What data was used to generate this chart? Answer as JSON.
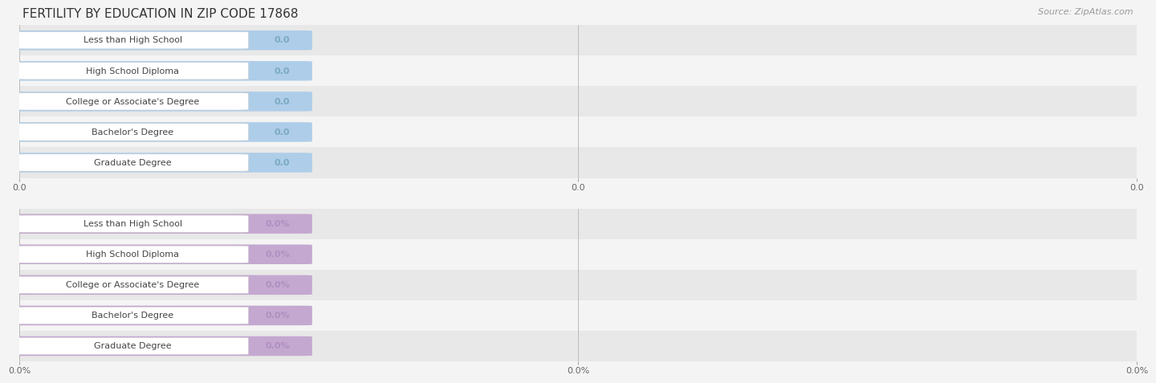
{
  "title": "FERTILITY BY EDUCATION IN ZIP CODE 17868",
  "source": "Source: ZipAtlas.com",
  "categories": [
    "Less than High School",
    "High School Diploma",
    "College or Associate's Degree",
    "Bachelor's Degree",
    "Graduate Degree"
  ],
  "values_top": [
    0.0,
    0.0,
    0.0,
    0.0,
    0.0
  ],
  "values_bottom": [
    0.0,
    0.0,
    0.0,
    0.0,
    0.0
  ],
  "bar_color_top": "#aecde8",
  "bar_color_bottom": "#c4a8d0",
  "label_text_color": "#444444",
  "value_text_color_top": "#7aaabf",
  "value_text_color_bottom": "#b090c0",
  "row_bg_color_even": "#e8e8e8",
  "row_bg_color_odd": "#f4f4f4",
  "background_color": "#f4f4f4",
  "xtick_labels_top": [
    "0.0",
    "0.0",
    "0.0"
  ],
  "xtick_labels_bottom": [
    "0.0%",
    "0.0%",
    "0.0%"
  ],
  "title_fontsize": 11,
  "source_fontsize": 8,
  "label_fontsize": 8,
  "value_fontsize": 8,
  "tick_fontsize": 8,
  "grid_color": "#bbbbbb"
}
